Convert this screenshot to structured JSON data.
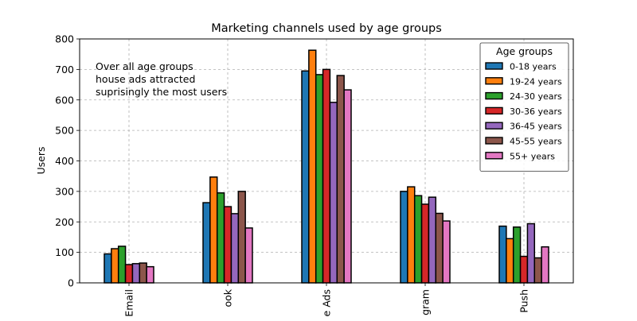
{
  "chart_data": {
    "type": "bar",
    "title": "Marketing channels used by age groups",
    "xlabel": "",
    "ylabel": "Users",
    "ylim": [
      0,
      800
    ],
    "yticks": [
      0,
      100,
      200,
      300,
      400,
      500,
      600,
      700,
      800
    ],
    "grid": true,
    "categories": [
      "Email",
      "Facebook",
      "House Ads",
      "Instagram",
      "Push"
    ],
    "category_labels_visible": [
      "Email",
      "ook",
      "e Ads",
      "gram",
      "Push"
    ],
    "legend": {
      "title": "Age groups",
      "placement": "top-right"
    },
    "annotation": [
      "Over all age groups",
      "house ads attracted",
      "suprisingly the most users"
    ],
    "series": [
      {
        "name": "0-18 years",
        "color": "#1f77b4",
        "values": [
          95,
          263,
          695,
          300,
          186
        ]
      },
      {
        "name": "19-24 years",
        "color": "#ff7f0e",
        "values": [
          112,
          347,
          763,
          315,
          145
        ]
      },
      {
        "name": "24-30 years",
        "color": "#2ca02c",
        "values": [
          120,
          295,
          683,
          286,
          183
        ]
      },
      {
        "name": "30-36 years",
        "color": "#d62728",
        "values": [
          60,
          250,
          700,
          258,
          87
        ]
      },
      {
        "name": "36-45 years",
        "color": "#9467bd",
        "values": [
          63,
          227,
          592,
          281,
          194
        ]
      },
      {
        "name": "45-55 years",
        "color": "#8c564b",
        "values": [
          65,
          300,
          680,
          228,
          82
        ]
      },
      {
        "name": "55+ years",
        "color": "#e377c2",
        "values": [
          53,
          180,
          633,
          203,
          118
        ]
      }
    ]
  }
}
